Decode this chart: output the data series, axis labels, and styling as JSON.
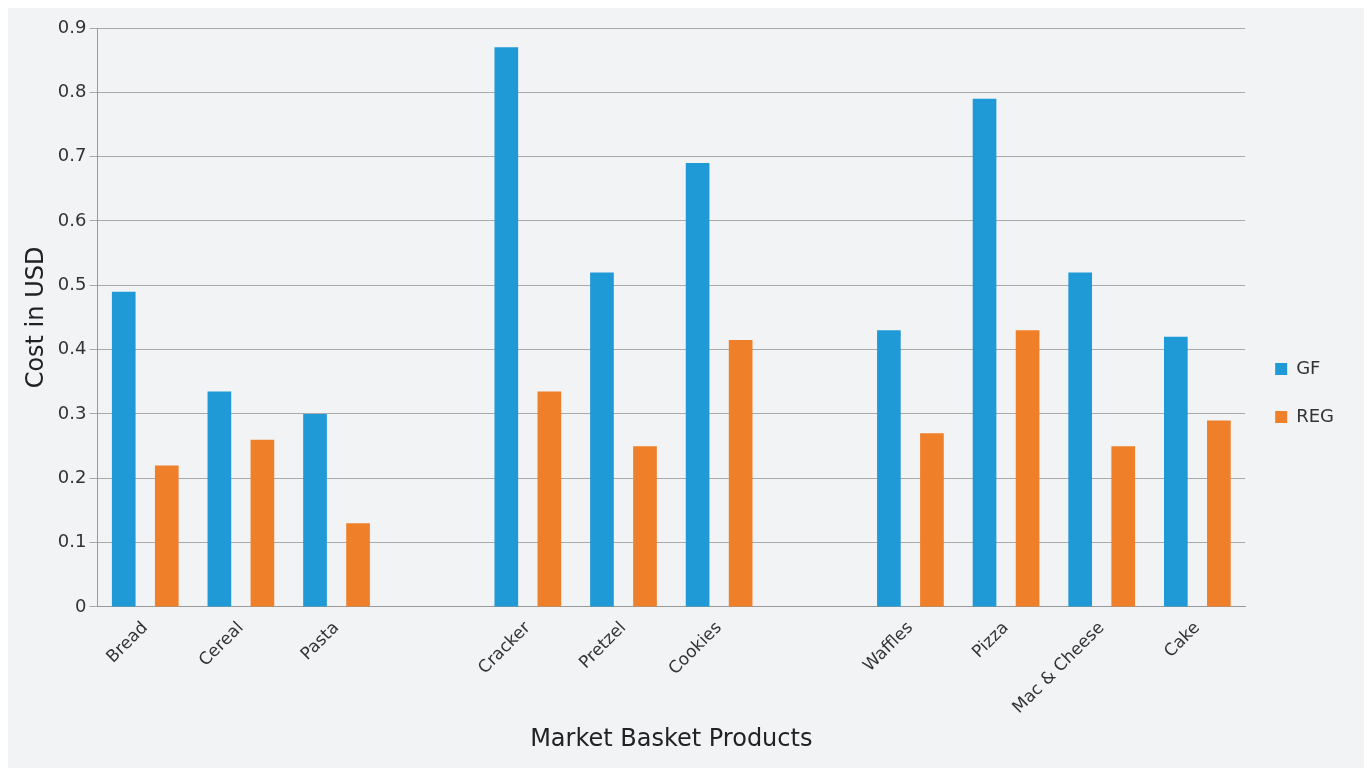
{
  "chart_data": {
    "type": "bar",
    "xlabel": "Market Basket Products",
    "ylabel": "Cost in USD",
    "categories": [
      "Bread",
      "Cereal",
      "Pasta",
      null,
      "Cracker",
      "Pretzel",
      "Cookies",
      null,
      "Waffles",
      "Pizza",
      "Mac & Cheese",
      "Cake"
    ],
    "series": [
      {
        "name": "GF",
        "color": "#1f9ad6",
        "values": [
          0.49,
          0.335,
          0.3,
          null,
          0.87,
          0.52,
          0.69,
          null,
          0.43,
          0.79,
          0.52,
          0.42
        ]
      },
      {
        "name": "REG",
        "color": "#f07f2a",
        "values": [
          0.22,
          0.26,
          0.13,
          null,
          0.335,
          0.25,
          0.415,
          null,
          0.27,
          0.43,
          0.25,
          0.29
        ]
      }
    ],
    "ylim": [
      0,
      0.9
    ],
    "yticks": [
      0,
      0.1,
      0.2,
      0.3,
      0.4,
      0.5,
      0.6,
      0.7,
      0.8,
      0.9
    ],
    "grid": "y",
    "legend": "right"
  }
}
